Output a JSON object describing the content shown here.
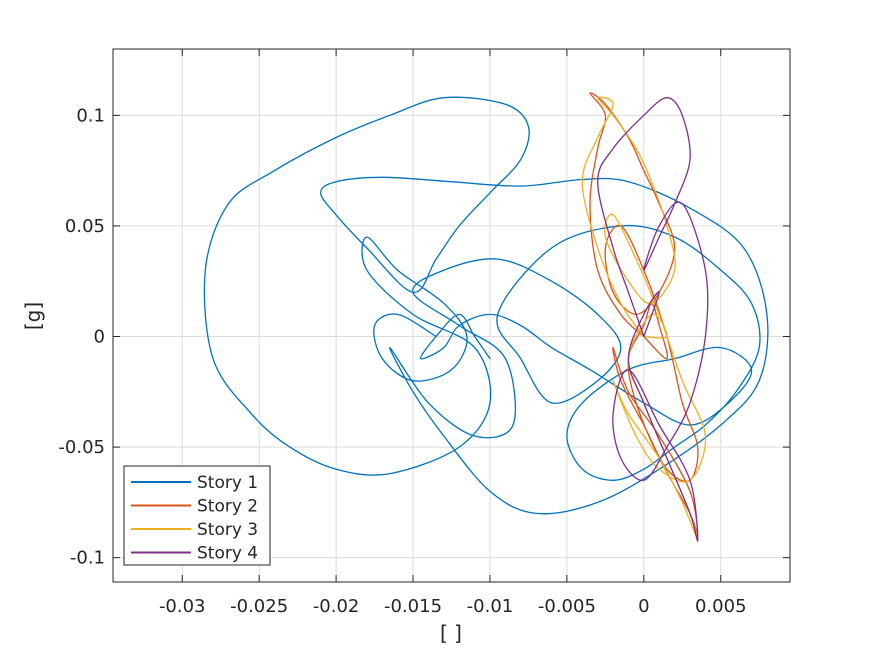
{
  "chart_data": {
    "type": "line",
    "title": "",
    "xlabel": "[ ]",
    "ylabel": "[g]",
    "xlim": [
      -0.0345,
      0.0095
    ],
    "ylim": [
      -0.111,
      0.13
    ],
    "grid": true,
    "legend_position": "bottom-left",
    "xticks": [
      -0.03,
      -0.025,
      -0.02,
      -0.015,
      -0.01,
      -0.005,
      0,
      0.005
    ],
    "xtick_labels": [
      "-0.03",
      "-0.025",
      "-0.02",
      "-0.015",
      "-0.01",
      "-0.005",
      "0",
      "0.005"
    ],
    "yticks": [
      -0.1,
      -0.05,
      0,
      0.05,
      0.1
    ],
    "ytick_labels": [
      "-0.1",
      "-0.05",
      "0",
      "0.05",
      "0.1"
    ],
    "series": [
      {
        "name": "Story 1",
        "color": "#0072BD",
        "x": [
          -0.0135,
          -0.016,
          -0.0175,
          -0.017,
          -0.015,
          -0.0125,
          -0.0115,
          -0.013,
          -0.016,
          -0.018,
          -0.018,
          -0.015,
          -0.011,
          -0.01,
          -0.012,
          -0.0165,
          -0.02,
          -0.023,
          -0.0255,
          -0.028,
          -0.0285,
          -0.027,
          -0.024,
          -0.02,
          -0.0165,
          -0.013,
          -0.009,
          -0.0075,
          -0.008,
          -0.01,
          -0.012,
          -0.0135,
          -0.015,
          -0.018,
          -0.02,
          -0.021,
          -0.02,
          -0.017,
          -0.0125,
          -0.008,
          -0.004,
          -0.001,
          0.003,
          0.0065,
          0.008,
          0.0075,
          0.005,
          0.001,
          -0.003,
          -0.007,
          -0.01,
          -0.013,
          -0.015,
          -0.0165,
          -0.014,
          -0.011,
          -0.0085,
          -0.009,
          -0.012,
          -0.015,
          -0.013,
          -0.0095,
          -0.006,
          -0.003,
          -0.0015,
          -0.003,
          -0.006,
          -0.008,
          -0.0095,
          -0.006,
          -0.0015,
          0.002,
          0.005,
          0.007,
          0.0075,
          0.006,
          0.004,
          0.002,
          0.0,
          -0.002,
          -0.004,
          -0.005,
          -0.004,
          -0.001,
          0.002,
          0.005,
          0.007,
          0.0055,
          0.003,
          0.0,
          -0.0035,
          -0.006,
          -0.008,
          -0.01,
          -0.012,
          -0.013,
          -0.0145,
          -0.0135,
          -0.012,
          -0.011,
          -0.01
        ],
        "y": [
          0.0,
          0.01,
          0.005,
          -0.01,
          -0.02,
          -0.015,
          0.0,
          0.015,
          0.03,
          0.045,
          0.03,
          0.01,
          -0.005,
          -0.03,
          -0.05,
          -0.062,
          -0.06,
          -0.05,
          -0.035,
          -0.01,
          0.03,
          0.06,
          0.075,
          0.09,
          0.1,
          0.108,
          0.105,
          0.095,
          0.08,
          0.065,
          0.05,
          0.035,
          0.02,
          0.04,
          0.055,
          0.065,
          0.07,
          0.072,
          0.07,
          0.068,
          0.071,
          0.07,
          0.058,
          0.04,
          0.01,
          -0.02,
          -0.04,
          -0.06,
          -0.075,
          -0.08,
          -0.07,
          -0.045,
          -0.025,
          -0.005,
          -0.03,
          -0.045,
          -0.04,
          -0.01,
          0.005,
          0.02,
          0.03,
          0.035,
          0.025,
          0.01,
          -0.005,
          -0.02,
          -0.03,
          -0.01,
          0.01,
          0.04,
          0.05,
          0.045,
          0.03,
          0.015,
          -0.005,
          -0.025,
          -0.04,
          -0.05,
          -0.06,
          -0.065,
          -0.06,
          -0.045,
          -0.03,
          -0.015,
          -0.01,
          -0.005,
          -0.015,
          -0.03,
          -0.04,
          -0.03,
          -0.015,
          -0.005,
          0.005,
          0.01,
          0.005,
          -0.005,
          -0.01,
          0.0,
          0.01,
          0.0,
          -0.01
        ]
      },
      {
        "name": "Story 2",
        "color": "#D95319",
        "x": [
          0.0,
          -0.0015,
          -0.003,
          -0.0035,
          -0.003,
          -0.0025,
          -0.0035,
          -0.0025,
          -0.001,
          0.0,
          0.001,
          0.002,
          0.001,
          -0.0005,
          -0.002,
          -0.0025,
          -0.0015,
          0.0,
          0.0015,
          0.0025,
          0.0035,
          0.003,
          0.0015,
          0.0,
          -0.0015,
          -0.002,
          -0.001,
          0.001,
          0.003,
          0.0035,
          0.003,
          0.001,
          -0.0005,
          -0.001,
          0.0,
          0.0005,
          0.001,
          0.0015,
          0.0
        ],
        "y": [
          0.0,
          0.01,
          0.03,
          0.06,
          0.085,
          0.1,
          0.11,
          0.105,
          0.09,
          0.075,
          0.06,
          0.04,
          0.02,
          0.01,
          0.02,
          0.04,
          0.05,
          0.03,
          0.0,
          -0.03,
          -0.05,
          -0.065,
          -0.06,
          -0.04,
          -0.02,
          -0.005,
          -0.025,
          -0.045,
          -0.07,
          -0.09,
          -0.08,
          -0.055,
          -0.03,
          -0.01,
          0.005,
          0.015,
          0.005,
          -0.01,
          0.0
        ]
      },
      {
        "name": "Story 3",
        "color": "#EDB120",
        "x": [
          0.0,
          -0.0015,
          -0.003,
          -0.004,
          -0.003,
          -0.002,
          -0.003,
          -0.002,
          -0.0005,
          0.0005,
          0.0015,
          0.002,
          0.0005,
          -0.001,
          -0.0025,
          -0.002,
          -0.0005,
          0.001,
          0.0025,
          0.004,
          0.003,
          0.001,
          -0.0005,
          -0.002,
          -0.001,
          0.001,
          0.0025,
          0.0035,
          0.003,
          0.0015,
          0.0,
          -0.001,
          0.0005,
          0.0015,
          0.0
        ],
        "y": [
          0.0,
          0.015,
          0.04,
          0.07,
          0.09,
          0.105,
          0.108,
          0.1,
          0.085,
          0.07,
          0.05,
          0.03,
          0.015,
          0.025,
          0.045,
          0.055,
          0.035,
          0.01,
          -0.02,
          -0.045,
          -0.065,
          -0.06,
          -0.045,
          -0.02,
          -0.035,
          -0.055,
          -0.075,
          -0.092,
          -0.08,
          -0.055,
          -0.03,
          -0.01,
          0.01,
          0.0,
          0.0
        ]
      },
      {
        "name": "Story 4",
        "color": "#7E2F8E",
        "x": [
          0.0,
          -0.001,
          -0.002,
          -0.003,
          -0.002,
          0.0,
          0.0015,
          0.0025,
          0.003,
          0.002,
          0.001,
          0.0,
          0.001,
          0.0025,
          0.004,
          0.004,
          0.003,
          0.0015,
          0.0,
          -0.0015,
          -0.002,
          -0.001,
          0.001,
          0.003,
          0.0035,
          0.003,
          0.0015,
          0.0,
          -0.001,
          0.0,
          0.001,
          0.0
        ],
        "y": [
          0.0,
          0.02,
          0.04,
          0.07,
          0.085,
          0.1,
          0.108,
          0.1,
          0.08,
          0.06,
          0.045,
          0.03,
          0.05,
          0.06,
          0.03,
          0.0,
          -0.03,
          -0.05,
          -0.065,
          -0.055,
          -0.035,
          -0.015,
          -0.04,
          -0.065,
          -0.092,
          -0.08,
          -0.055,
          -0.03,
          -0.01,
          0.01,
          0.02,
          0.0
        ]
      }
    ]
  }
}
